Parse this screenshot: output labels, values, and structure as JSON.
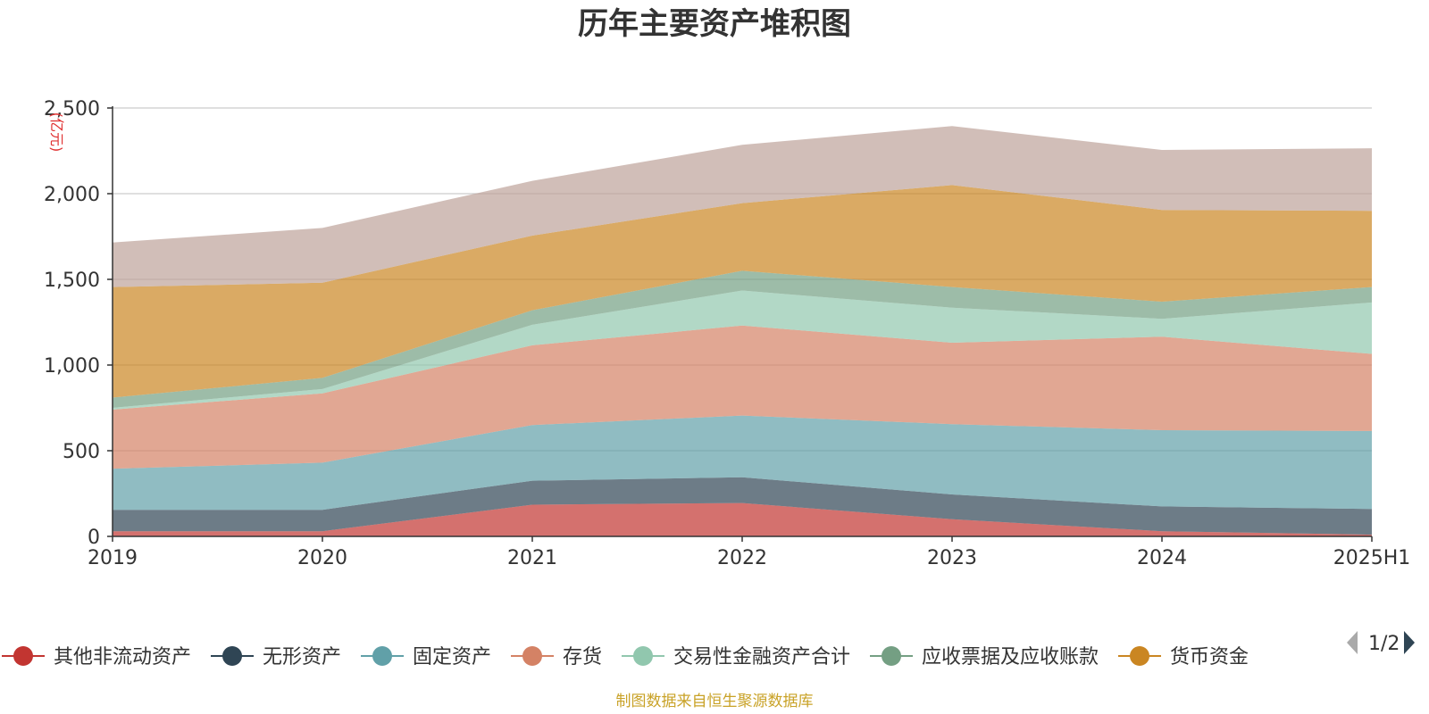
{
  "chart_data": {
    "type": "area",
    "stacked": true,
    "title": "历年主要资产堆积图",
    "unit": "(亿元)",
    "categories": [
      "2019",
      "2020",
      "2021",
      "2022",
      "2023",
      "2024",
      "2025H1"
    ],
    "ylim": [
      0,
      2500
    ],
    "yticks": [
      0,
      500,
      1000,
      1500,
      2000,
      2500
    ],
    "ytick_labels": [
      "0",
      "500",
      "1,000",
      "1,500",
      "2,000",
      "2,500"
    ],
    "grid": true,
    "legend_position": "bottom",
    "series": [
      {
        "name": "其他非流动资产",
        "color": "#c23531",
        "values": [
          30,
          30,
          185,
          195,
          100,
          30,
          10
        ]
      },
      {
        "name": "无形资产",
        "color": "#2f4554",
        "values": [
          125,
          125,
          140,
          150,
          145,
          145,
          150
        ]
      },
      {
        "name": "固定资产",
        "color": "#61a0a8",
        "values": [
          240,
          275,
          325,
          360,
          410,
          445,
          455
        ]
      },
      {
        "name": "存货",
        "color": "#d48265",
        "values": [
          345,
          405,
          465,
          525,
          475,
          545,
          450
        ]
      },
      {
        "name": "交易性金融资产合计",
        "color": "#91c7ae",
        "values": [
          10,
          25,
          120,
          205,
          205,
          105,
          300
        ]
      },
      {
        "name": "应收票据及应收账款",
        "color": "#749f83",
        "values": [
          60,
          65,
          85,
          115,
          120,
          100,
          90
        ]
      },
      {
        "name": "货币资金",
        "color": "#ca8622",
        "values": [
          645,
          555,
          435,
          395,
          595,
          535,
          445
        ]
      },
      {
        "name": "",
        "color": "#bda29a",
        "values": [
          260,
          320,
          320,
          340,
          345,
          350,
          365
        ]
      }
    ]
  },
  "legend": {
    "page_indicator": "1/2"
  },
  "footer": {
    "source": "制图数据来自恒生聚源数据库"
  }
}
